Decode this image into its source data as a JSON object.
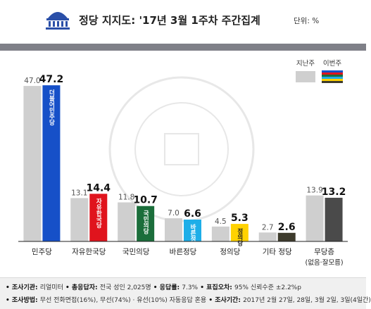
{
  "title": "정당 지지도: '17년 3월 1주차 주간집계",
  "unit_label": "단위: %",
  "chart_data": {
    "type": "bar",
    "categories": [
      "민주당",
      "자유한국당",
      "국민의당",
      "바른정당",
      "정의당",
      "기타 정당",
      "무당층"
    ],
    "category_sub": [
      "",
      "",
      "",
      "",
      "",
      "",
      "(없음·잘모름)"
    ],
    "series": [
      {
        "name": "지난주",
        "values": [
          47.0,
          13.1,
          11.8,
          7.0,
          4.5,
          2.7,
          13.9
        ]
      },
      {
        "name": "이번주",
        "values": [
          47.2,
          14.4,
          10.7,
          6.6,
          5.3,
          2.6,
          13.2
        ]
      }
    ],
    "ylim": [
      0,
      50
    ],
    "legend_position": "top-right",
    "party_logos": [
      "더불어민주당",
      "자유한국당",
      "국민의당",
      "바른정당",
      "정의당",
      "",
      ""
    ],
    "colors": {
      "last_week": "#cfcfcf",
      "this_week": [
        "#1650c8",
        "#e0141d",
        "#1b6e3b",
        "#1eaee8",
        "#ffd200",
        "#3d3b2c",
        "#4a4a4a"
      ]
    }
  },
  "footer": {
    "line1": [
      {
        "label": "조사기관",
        "value": "리얼미터"
      },
      {
        "label": "총응답자",
        "value": "전국 성인 2,025명"
      },
      {
        "label": "응답률",
        "value": "7.3%"
      },
      {
        "label": "표집오차",
        "value": "95% 신뢰수준 ±2.2%p"
      }
    ],
    "line2": [
      {
        "label": "조사방법",
        "value": "무선 전화면접(16%), 무선(74%) · 유선(10%) 자동응답 혼용"
      },
      {
        "label": "조사기간",
        "value": "2017년 2월 27일, 28일, 3월 2일, 3일(4일간)"
      }
    ]
  }
}
